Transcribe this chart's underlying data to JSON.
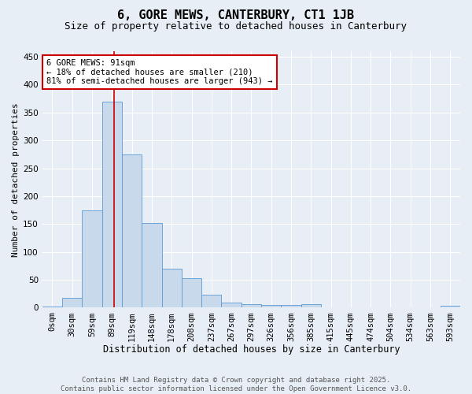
{
  "title": "6, GORE MEWS, CANTERBURY, CT1 1JB",
  "subtitle": "Size of property relative to detached houses in Canterbury",
  "xlabel": "Distribution of detached houses by size in Canterbury",
  "ylabel": "Number of detached properties",
  "bar_labels": [
    "0sqm",
    "30sqm",
    "59sqm",
    "89sqm",
    "119sqm",
    "148sqm",
    "178sqm",
    "208sqm",
    "237sqm",
    "267sqm",
    "297sqm",
    "326sqm",
    "356sqm",
    "385sqm",
    "415sqm",
    "445sqm",
    "474sqm",
    "504sqm",
    "534sqm",
    "563sqm",
    "593sqm"
  ],
  "bar_values": [
    2,
    18,
    175,
    370,
    275,
    152,
    70,
    53,
    23,
    9,
    6,
    5,
    5,
    7,
    1,
    0,
    1,
    0,
    0,
    0,
    3
  ],
  "bar_color": "#c9d9ec",
  "bar_edgecolor": "#5b9bd5",
  "red_line_index": 3.1,
  "ylim": [
    0,
    460
  ],
  "yticks": [
    0,
    50,
    100,
    150,
    200,
    250,
    300,
    350,
    400,
    450
  ],
  "annotation_text": "6 GORE MEWS: 91sqm\n← 18% of detached houses are smaller (210)\n81% of semi-detached houses are larger (943) →",
  "annotation_box_color": "#ffffff",
  "annotation_box_edgecolor": "#cc0000",
  "footer_line1": "Contains HM Land Registry data © Crown copyright and database right 2025.",
  "footer_line2": "Contains public sector information licensed under the Open Government Licence v3.0.",
  "background_color": "#e8eef5",
  "plot_background_color": "#e8eef5",
  "grid_color": "#ffffff",
  "title_fontsize": 11,
  "subtitle_fontsize": 9,
  "xlabel_fontsize": 8.5,
  "ylabel_fontsize": 8,
  "tick_fontsize": 7.5,
  "annotation_fontsize": 7.5,
  "footer_fontsize": 6.5
}
